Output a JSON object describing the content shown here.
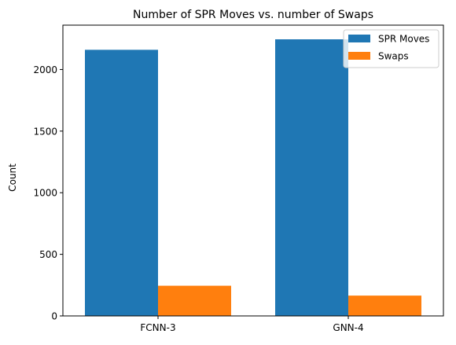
{
  "chart_data": {
    "type": "bar",
    "title": "Number of SPR Moves vs. number of Swaps",
    "xlabel": "",
    "ylabel": "Count",
    "categories": [
      "FCNN-3",
      "GNN-4"
    ],
    "series": [
      {
        "name": "SPR Moves",
        "values": [
          2160,
          2245
        ],
        "color": "#1f77b4"
      },
      {
        "name": "Swaps",
        "values": [
          245,
          165
        ],
        "color": "#ff7f0e"
      }
    ],
    "ylim": [
      0,
      2360
    ],
    "yticks": [
      0,
      500,
      1000,
      1500,
      2000
    ],
    "grid": false,
    "legend_position": "top-right"
  }
}
